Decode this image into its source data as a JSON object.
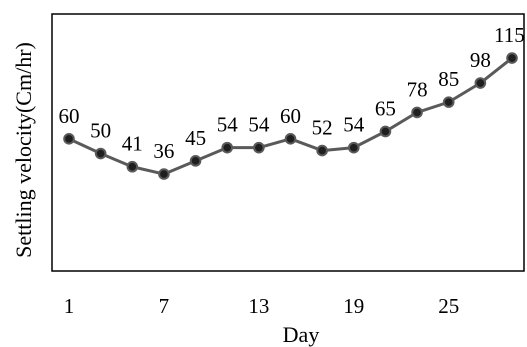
{
  "chart_data": {
    "type": "line",
    "title": "",
    "xlabel": "Day",
    "ylabel": "Settling velocity(Cm/hr)",
    "x": [
      1,
      3,
      5,
      7,
      9,
      11,
      13,
      15,
      17,
      19,
      21,
      23,
      25,
      27,
      29
    ],
    "x_tick_values": [
      1,
      7,
      13,
      19,
      25
    ],
    "x_tick_labels": [
      "1",
      "7",
      "13",
      "19",
      "25"
    ],
    "series": [
      {
        "values": [
          60,
          50,
          41,
          36,
          45,
          54,
          54,
          60,
          52,
          54,
          65,
          78,
          85,
          98,
          115
        ],
        "data_labels": [
          "60",
          "50",
          "41",
          "36",
          "45",
          "54",
          "54",
          "60",
          "52",
          "54",
          "65",
          "78",
          "85",
          "98",
          "115"
        ]
      }
    ],
    "ylim": [
      -30,
      145
    ],
    "grid": false,
    "legend": "none",
    "colors": {
      "line": "#5a5a5a",
      "marker": "#1f1f1f"
    }
  }
}
